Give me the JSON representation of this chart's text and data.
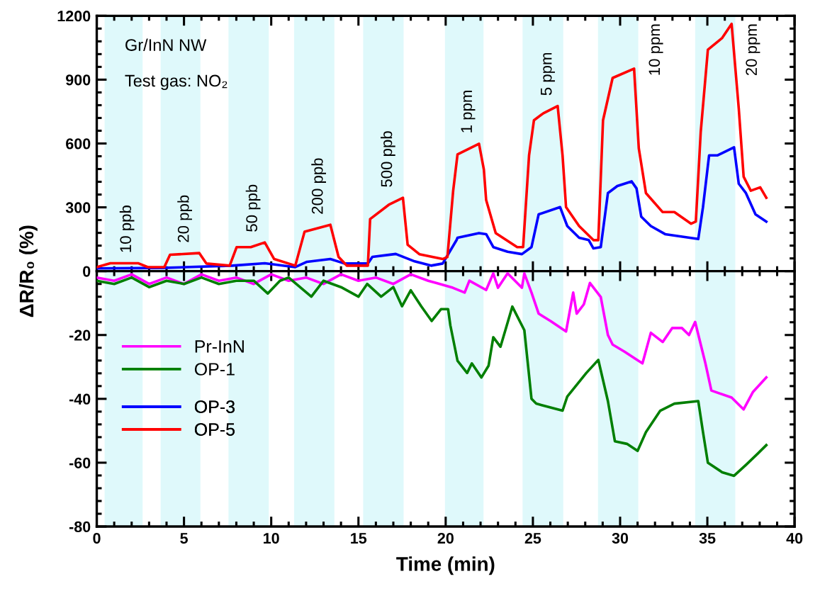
{
  "chart_data": [
    {
      "type": "line",
      "xlim": [
        0,
        40
      ],
      "ylim": [
        0,
        1200
      ],
      "xticks": [
        0,
        5,
        10,
        15,
        20,
        25,
        30,
        35,
        40
      ],
      "yticks": [
        0,
        300,
        600,
        900,
        1200
      ],
      "tick_labels": "y",
      "annotations": [
        "Gr/InN NW",
        "Test gas: NO₂"
      ],
      "legend": "left",
      "bands": [
        {
          "axis": "x",
          "from": 0.45,
          "to": 2.63,
          "color": "#dff9fb",
          "label": "10 ppb"
        },
        {
          "axis": "x",
          "from": 3.66,
          "to": 5.94,
          "color": "#dff9fb",
          "label": "20 ppb"
        },
        {
          "axis": "x",
          "from": 7.55,
          "to": 9.86,
          "color": "#dff9fb",
          "label": "50 ppb"
        },
        {
          "axis": "x",
          "from": 11.31,
          "to": 13.62,
          "color": "#dff9fb",
          "label": "200 ppb"
        },
        {
          "axis": "x",
          "from": 15.27,
          "to": 17.59,
          "color": "#dff9fb",
          "label": "500 ppb"
        },
        {
          "axis": "x",
          "from": 19.96,
          "to": 22.17,
          "color": "#dff9fb",
          "label": "1 ppm"
        },
        {
          "axis": "x",
          "from": 24.41,
          "to": 26.74,
          "color": "#dff9fb",
          "label": "5 ppm"
        },
        {
          "axis": "x",
          "from": 28.73,
          "to": 31.04,
          "color": "#dff9fb",
          "label": "10 ppm"
        },
        {
          "axis": "x",
          "from": 34.3,
          "to": 36.6,
          "color": "#dff9fb",
          "label": "20 ppm"
        }
      ],
      "series": [
        {
          "name": "OP-3",
          "color": "#0000ff",
          "x": [
            0,
            3.74,
            7.76,
            9.63,
            11.38,
            12.05,
            13.39,
            14.2,
            15.54,
            15.8,
            17.14,
            18.22,
            19.16,
            19.83,
            20.63,
            20.68,
            21.91,
            22.32,
            22.73,
            23.55,
            24.37,
            24.92,
            25.33,
            26.56,
            26.97,
            27.65,
            28.2,
            28.47,
            28.89,
            29.3,
            29.84,
            30.66,
            30.94,
            31.21,
            31.76,
            32.58,
            34.48,
            34.75,
            35.1,
            35.57,
            36.53,
            36.8,
            37.21,
            37.76,
            38.38
          ],
          "values": [
            13,
            15,
            26,
            37,
            19,
            44,
            57,
            36,
            36,
            67,
            81,
            46,
            26,
            36,
            147,
            157,
            179,
            174,
            113,
            91,
            80,
            113,
            267,
            301,
            212,
            157,
            146,
            107,
            113,
            367,
            400,
            422,
            389,
            256,
            212,
            174,
            151,
            301,
            544,
            544,
            582,
            411,
            367,
            267,
            233
          ]
        },
        {
          "name": "OP-5",
          "color": "#ff0000",
          "x": [
            0,
            0.78,
            2.39,
            2.93,
            3.87,
            4.2,
            5.88,
            6.28,
            7.62,
            8.02,
            8.83,
            9.63,
            10.17,
            11.38,
            11.91,
            13.39,
            13.86,
            14.33,
            15.54,
            15.67,
            16.74,
            17.55,
            17.82,
            18.49,
            19.83,
            20.1,
            20.43,
            20.68,
            21.91,
            22.19,
            22.32,
            22.87,
            24.1,
            24.44,
            24.78,
            25.06,
            25.6,
            26.42,
            26.7,
            26.9,
            27.65,
            28.47,
            28.75,
            29.02,
            29.57,
            30.8,
            31.07,
            31.48,
            32.43,
            33.11,
            34.07,
            34.34,
            34.62,
            35.03,
            35.85,
            36.39,
            36.8,
            37.08,
            37.49,
            38.03,
            38.38
          ],
          "values": [
            19,
            37,
            37,
            19,
            19,
            77,
            85,
            36,
            26,
            113,
            113,
            135,
            57,
            26,
            185,
            218,
            67,
            26,
            26,
            245,
            312,
            345,
            124,
            80,
            57,
            67,
            378,
            549,
            599,
            477,
            334,
            179,
            113,
            113,
            544,
            709,
            742,
            776,
            544,
            301,
            212,
            146,
            146,
            709,
            908,
            952,
            577,
            367,
            278,
            278,
            223,
            233,
            654,
            1041,
            1096,
            1162,
            765,
            444,
            378,
            394,
            345
          ]
        }
      ]
    },
    {
      "type": "line",
      "xlim": [
        0,
        40
      ],
      "ylim": [
        -80,
        0
      ],
      "xticks": [
        0,
        5,
        10,
        15,
        20,
        25,
        30,
        35,
        40
      ],
      "yticks": [
        -80,
        -60,
        -40,
        -20,
        {
          "value": 0,
          "label": null
        }
      ],
      "xlabel": "Time (min)",
      "ylabel": "ΔR/R₀ (%)",
      "legend": "left",
      "bands": [
        {
          "axis": "x",
          "from": 0.45,
          "to": 2.63,
          "color": "#dff9fb"
        },
        {
          "axis": "x",
          "from": 3.66,
          "to": 5.94,
          "color": "#dff9fb"
        },
        {
          "axis": "x",
          "from": 7.55,
          "to": 9.86,
          "color": "#dff9fb"
        },
        {
          "axis": "x",
          "from": 11.31,
          "to": 13.62,
          "color": "#dff9fb"
        },
        {
          "axis": "x",
          "from": 15.27,
          "to": 17.59,
          "color": "#dff9fb"
        },
        {
          "axis": "x",
          "from": 19.96,
          "to": 22.17,
          "color": "#dff9fb"
        },
        {
          "axis": "x",
          "from": 24.41,
          "to": 26.74,
          "color": "#dff9fb"
        },
        {
          "axis": "x",
          "from": 28.73,
          "to": 31.04,
          "color": "#dff9fb"
        },
        {
          "axis": "x",
          "from": 34.3,
          "to": 36.6,
          "color": "#dff9fb"
        }
      ],
      "series": [
        {
          "name": "Pr-InN",
          "color": "#ff00ff",
          "x": [
            0,
            1,
            2,
            3,
            4,
            5,
            6,
            7,
            8,
            9,
            10,
            11,
            12,
            13,
            14,
            15,
            16,
            17,
            18,
            19,
            19.45,
            20.41,
            21.09,
            21.36,
            22.32,
            22.73,
            23.0,
            23.55,
            24.37,
            24.51,
            24.92,
            25.33,
            26.01,
            26.9,
            27.31,
            27.51,
            27.92,
            28.27,
            28.89,
            29.3,
            29.57,
            30.25,
            31.28,
            31.76,
            32.44,
            32.99,
            33.54,
            33.95,
            34.3,
            34.89,
            35.23,
            36.39,
            37.08,
            37.62,
            38.38
          ],
          "values": [
            -2,
            -3,
            -1,
            -4,
            -2,
            -4,
            -1,
            -3,
            -2,
            -4,
            -1,
            -3,
            -2,
            -4,
            -1,
            -3,
            -2,
            -4,
            -1,
            -3,
            -3.7,
            -5.2,
            -6.7,
            -3,
            -5.9,
            -0.7,
            -5.2,
            -0.7,
            -5.2,
            -0.7,
            -6.7,
            -13.3,
            -15.6,
            -18.9,
            -6.7,
            -13.3,
            -10.4,
            -3.7,
            -8.1,
            -20,
            -23,
            -25.2,
            -28.9,
            -19.3,
            -22.2,
            -17.8,
            -17.8,
            -20,
            -15.9,
            -28.9,
            -37.4,
            -39.6,
            -43.3,
            -37.8,
            -33.3
          ]
        },
        {
          "name": "OP-1",
          "color": "#007f00",
          "x": [
            0,
            1,
            2,
            3,
            4,
            5,
            6,
            7,
            8,
            9,
            9.8,
            10.5,
            11,
            12.3,
            13,
            14,
            15,
            15.5,
            16.3,
            17,
            17.5,
            18,
            18.6,
            19.2,
            19.73,
            20.14,
            20.27,
            20.68,
            21.23,
            21.5,
            22.05,
            22.46,
            22.73,
            23.14,
            23.82,
            24.51,
            24.92,
            25.19,
            26.7,
            26.97,
            28.06,
            28.75,
            29.3,
            29.7,
            30.39,
            31.0,
            31.48,
            32.3,
            33.11,
            34.48,
            34.75,
            35.03,
            35.85,
            36.53,
            37.21,
            37.9,
            38.38
          ],
          "values": [
            -3,
            -4,
            -2,
            -5,
            -3,
            -4,
            -2,
            -4,
            -3,
            -3,
            -7,
            -3,
            -2,
            -8,
            -3,
            -5,
            -8,
            -4,
            -8,
            -5,
            -11,
            -6,
            -11,
            -15.6,
            -11.9,
            -11.9,
            -17,
            -28.1,
            -31.9,
            -28.9,
            -33.3,
            -29.6,
            -20.7,
            -23.7,
            -11.1,
            -18.5,
            -40,
            -41.5,
            -43.7,
            -39.3,
            -31.9,
            -27.8,
            -40.7,
            -53.3,
            -54.1,
            -56.3,
            -50.4,
            -43.7,
            -41.5,
            -40.7,
            -50.4,
            -60,
            -63,
            -64.1,
            -60.7,
            -57.1,
            -54.5
          ]
        }
      ]
    }
  ]
}
